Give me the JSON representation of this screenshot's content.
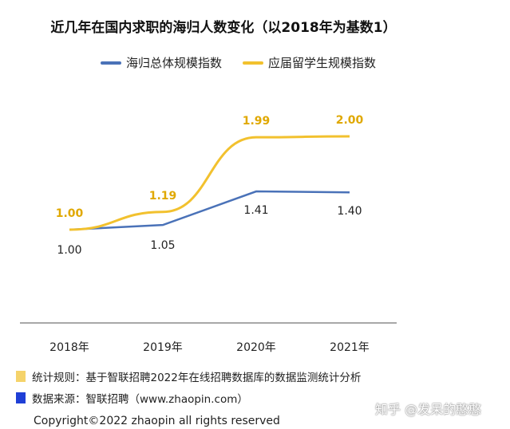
{
  "title": "近几年在国内求职的海归人数变化（以2018年为基数1）",
  "legend": {
    "series1": "海归总体规模指数",
    "series2": "应届留学生规模指数"
  },
  "colors": {
    "series1": "#4a72b8",
    "series2": "#f2c12e",
    "note_rule": "#f5d36a",
    "note_source": "#1f3fd6"
  },
  "notes": {
    "rule": "统计规则：基于智联招聘2022年在线招聘数据库的数据监测统计分析",
    "source": "数据来源：智联招聘（www.zhaopin.com）"
  },
  "copyright": "Copyright©2022 zhaopin all rights reserved",
  "watermark": "知乎 @发呆的憨憨",
  "chart_data": {
    "type": "line",
    "categories": [
      "2018年",
      "2019年",
      "2020年",
      "2021年"
    ],
    "series": [
      {
        "name": "海归总体规模指数",
        "values": [
          1.0,
          1.05,
          1.41,
          1.4
        ],
        "labels": [
          "1.00",
          "1.05",
          "1.41",
          "1.40"
        ]
      },
      {
        "name": "应届留学生规模指数",
        "values": [
          1.0,
          1.19,
          1.99,
          2.0
        ],
        "labels": [
          "1.00",
          "1.19",
          "1.99",
          "2.00"
        ]
      }
    ],
    "grid": false,
    "legend_position": "top"
  }
}
